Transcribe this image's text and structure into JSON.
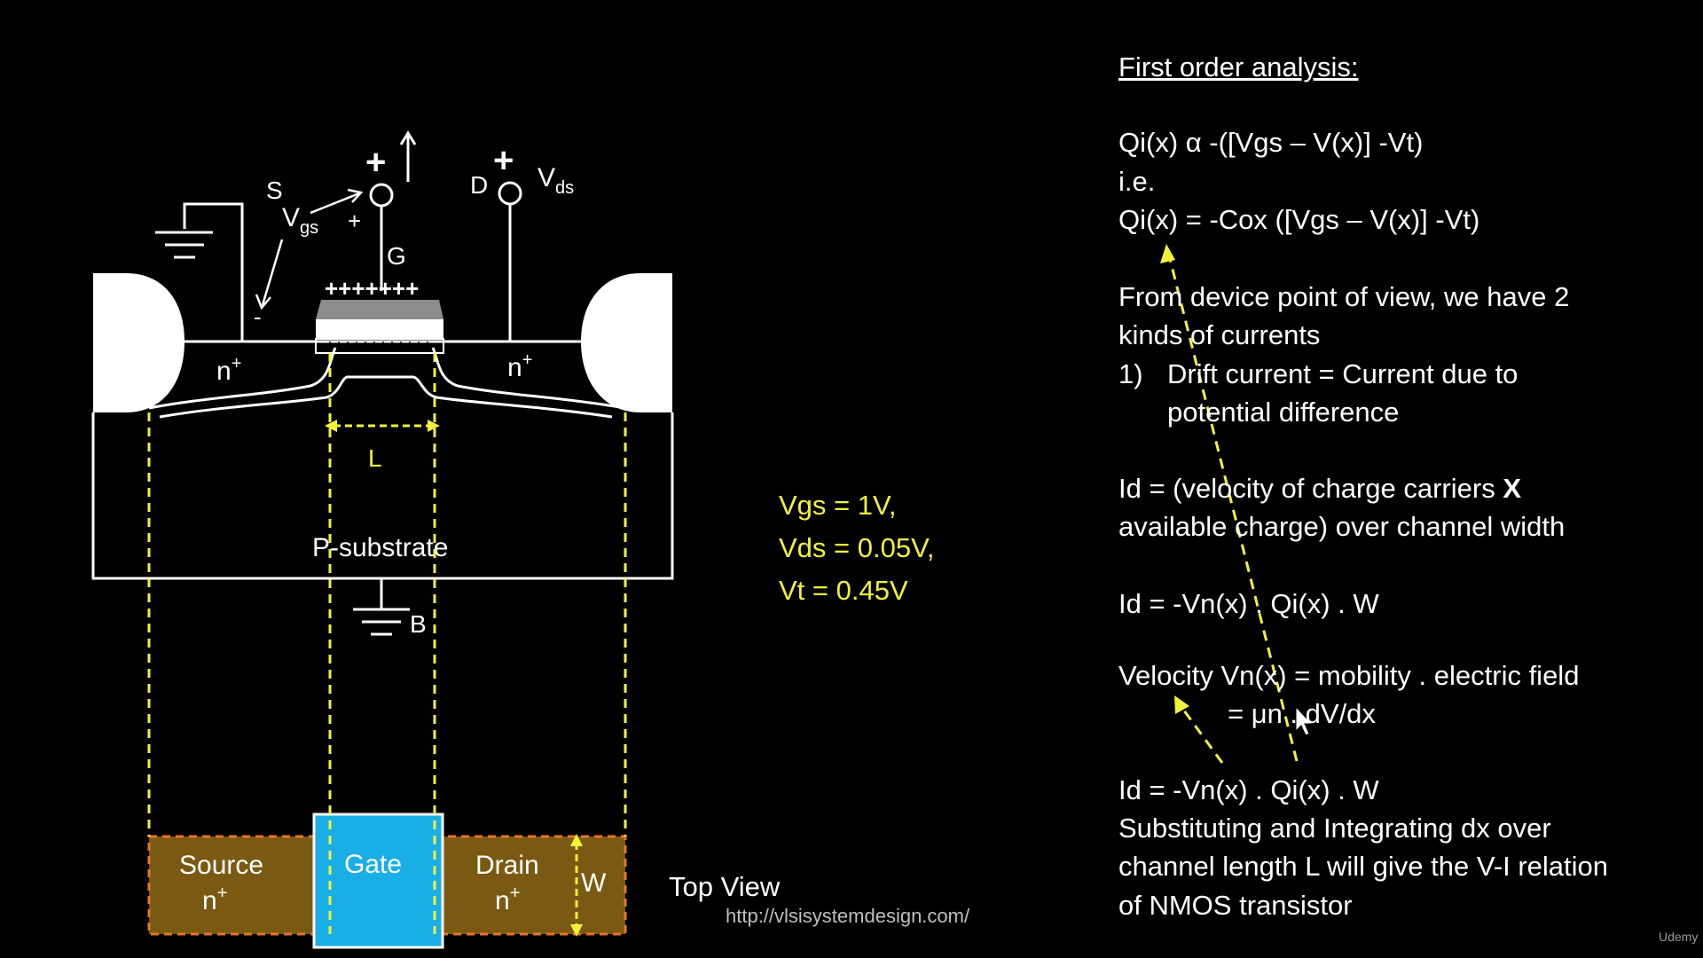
{
  "diagram": {
    "terminal_S": "S",
    "terminal_D": "D",
    "terminal_G": "G",
    "terminal_B": "B",
    "vgs_main": "V",
    "vgs_sub": "gs",
    "vds_main": "V",
    "vds_sub": "ds",
    "plus_gate_top": "+",
    "plus_drain_top": "+",
    "plus_vgs": "+",
    "minus_vgs": "-",
    "gate_charges": "+++++++",
    "n_plus_left": "n",
    "n_plus_right": "n",
    "superscript_plus": "+",
    "length_label": "L",
    "substrate_label": "P-substrate",
    "top_view": {
      "source_label": "Source",
      "source_doping": "n",
      "gate_label": "Gate",
      "drain_label": "Drain",
      "drain_doping": "n",
      "width_label": "W",
      "caption": "Top View"
    },
    "colors": {
      "region_fill": "#7a5a12",
      "region_border": "#e8742a",
      "gate_fill": "#1aaee6",
      "guide_yellow": "#f2f23a",
      "oxide_gray": "#8c8c8c"
    }
  },
  "conditions": {
    "vgs": "Vgs = 1V,",
    "vds": "Vds = 0.05V,",
    "vt": "Vt = 0.45V"
  },
  "url": "http://vlsisystemdesign.com/",
  "analysis": {
    "heading": "First order analysis:",
    "line1": "Qi(x) α -([Vgs – V(x)] -Vt)",
    "line2": "i.e.",
    "line3": "Qi(x) = -Cox ([Vgs – V(x)] -Vt)",
    "line4": "From device point of view, we have 2",
    "line5": "kinds of currents",
    "item_number": "1)",
    "item_line1": "Drift current = Current due to",
    "item_line2": "potential difference",
    "line6": "Id = (velocity of charge carriers ",
    "line6_bold": "X",
    "line7": "available charge) over channel width",
    "line8": "Id = -Vn(x) . Qi(x) . W",
    "line9": "Velocity Vn(x) = mobility . electric field",
    "line10": "= μn . dV/dx",
    "line11": "Id = -Vn(x) . Qi(x) . W",
    "line12": "Substituting and Integrating dx over",
    "line13": "channel length L will give the V-I relation",
    "line14": "of NMOS transistor"
  },
  "brand": "Udemy"
}
